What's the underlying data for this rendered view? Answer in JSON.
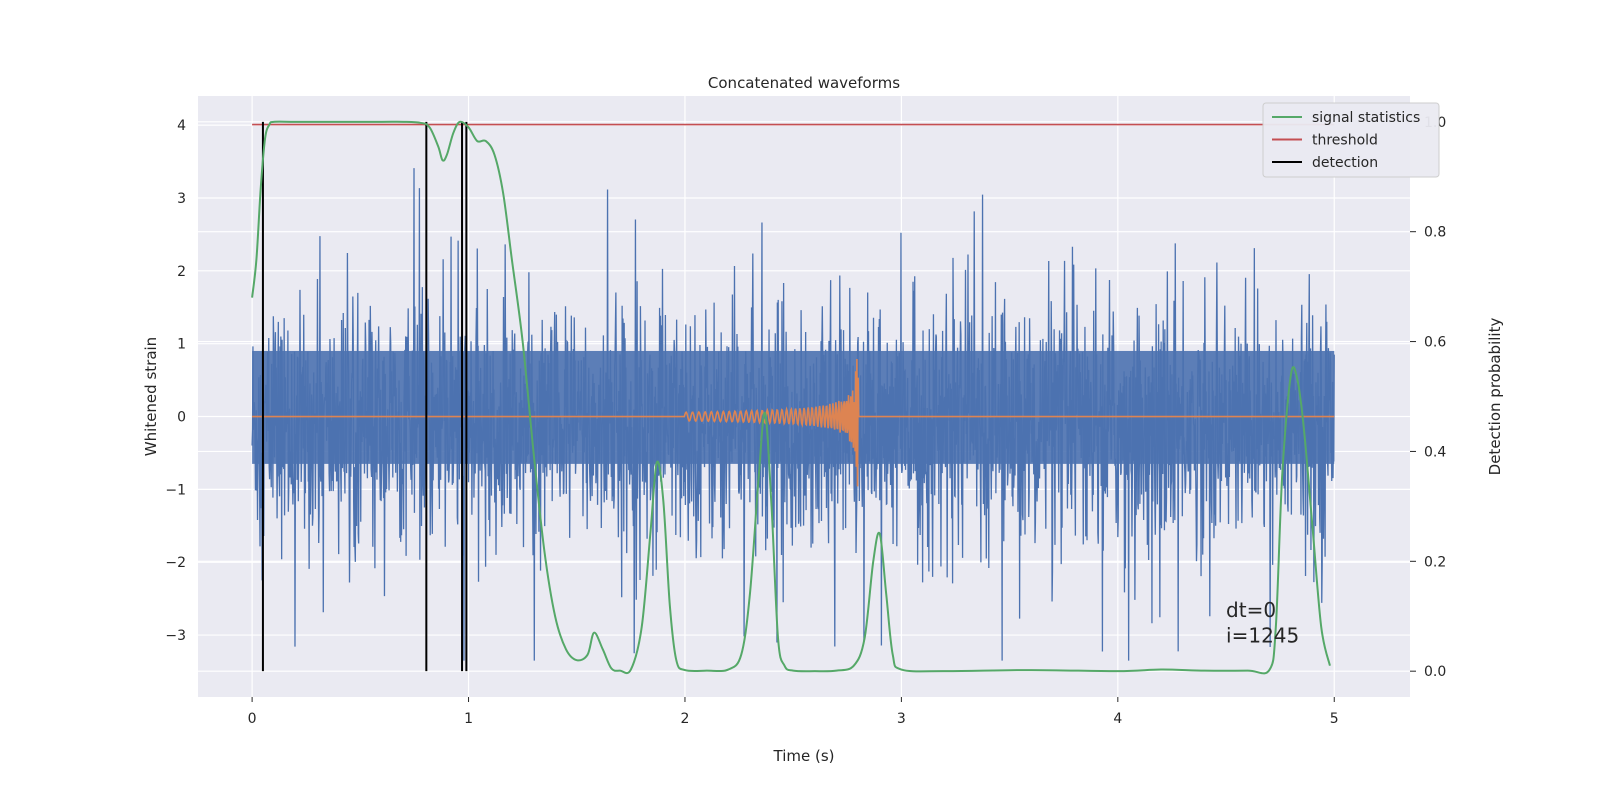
{
  "chart_data": {
    "type": "line",
    "title": "Concatenated waveforms",
    "xlabel": "Time (s)",
    "ylabel": "Whitened strain",
    "y2label": "Detection probability",
    "xlim": [
      -0.25,
      5.35
    ],
    "ylim": [
      -3.85,
      4.4
    ],
    "y2lim": [
      -0.047,
      1.047
    ],
    "xticks": [
      0,
      1,
      2,
      3,
      4,
      5
    ],
    "yticks": [
      -3,
      -2,
      -1,
      0,
      1,
      2,
      3,
      4
    ],
    "y2ticks": [
      0.0,
      0.2,
      0.4,
      0.6,
      0.8,
      1.0
    ],
    "grid": true,
    "legend_position": "top-right",
    "colors": {
      "strain": "#4c72b0",
      "waveform": "#dd8452",
      "signal_statistics": "#55a868",
      "threshold": "#c44e52",
      "detection": "#000000",
      "background": "#eaeaf2",
      "grid": "#ffffff"
    },
    "series": [
      {
        "name": "signal statistics",
        "axis": "right",
        "x": [
          0.0,
          0.02,
          0.04,
          0.06,
          0.08,
          0.1,
          0.2,
          0.4,
          0.6,
          0.7,
          0.78,
          0.82,
          0.86,
          0.88,
          0.9,
          0.93,
          0.96,
          1.0,
          1.04,
          1.08,
          1.12,
          1.16,
          1.2,
          1.25,
          1.3,
          1.35,
          1.4,
          1.45,
          1.5,
          1.55,
          1.58,
          1.62,
          1.66,
          1.7,
          1.75,
          1.8,
          1.84,
          1.87,
          1.9,
          1.93,
          1.96,
          2.0,
          2.1,
          2.2,
          2.26,
          2.3,
          2.34,
          2.37,
          2.4,
          2.43,
          2.46,
          2.5,
          2.6,
          2.7,
          2.78,
          2.83,
          2.87,
          2.9,
          2.93,
          2.96,
          3.0,
          3.2,
          3.6,
          4.0,
          4.2,
          4.4,
          4.6,
          4.7,
          4.73,
          4.76,
          4.8,
          4.83,
          4.86,
          4.9,
          4.94,
          4.98
        ],
        "values": [
          0.68,
          0.75,
          0.88,
          0.97,
          0.995,
          1.0,
          1.0,
          1.0,
          1.0,
          1.0,
          0.998,
          0.99,
          0.955,
          0.93,
          0.94,
          0.98,
          1.0,
          0.99,
          0.965,
          0.965,
          0.94,
          0.87,
          0.75,
          0.6,
          0.4,
          0.22,
          0.1,
          0.04,
          0.02,
          0.03,
          0.07,
          0.04,
          0.005,
          0.001,
          0.003,
          0.08,
          0.25,
          0.38,
          0.31,
          0.12,
          0.02,
          0.002,
          0.001,
          0.003,
          0.03,
          0.14,
          0.35,
          0.47,
          0.3,
          0.06,
          0.01,
          0.001,
          0.0,
          0.001,
          0.01,
          0.06,
          0.2,
          0.25,
          0.14,
          0.03,
          0.003,
          0.0,
          0.002,
          0.0,
          0.003,
          0.001,
          0.001,
          0.002,
          0.08,
          0.36,
          0.54,
          0.53,
          0.44,
          0.26,
          0.08,
          0.01
        ]
      },
      {
        "name": "threshold",
        "axis": "right",
        "x": [
          0.0,
          5.0
        ],
        "values": [
          0.995,
          0.995
        ]
      },
      {
        "name": "detection",
        "axis": "right",
        "vlines": [
          0.05,
          0.805,
          0.97,
          0.99
        ],
        "range": [
          0.0,
          1.0
        ]
      },
      {
        "name": "",
        "axis": "left",
        "description_key": "strain",
        "x_range": [
          0.0,
          5.0
        ],
        "mean": -0.15,
        "core_band": [
          -0.65,
          0.9
        ],
        "peak_range": [
          -3.35,
          3.6
        ]
      },
      {
        "name": "",
        "axis": "left",
        "description_key": "waveform",
        "x_range": [
          0.0,
          5.0
        ],
        "chirp_start": 2.0,
        "chirp_end": 2.8,
        "peak_amplitude": 1.0
      }
    ],
    "annotations": [
      "dt=0",
      "i=1245"
    ]
  }
}
